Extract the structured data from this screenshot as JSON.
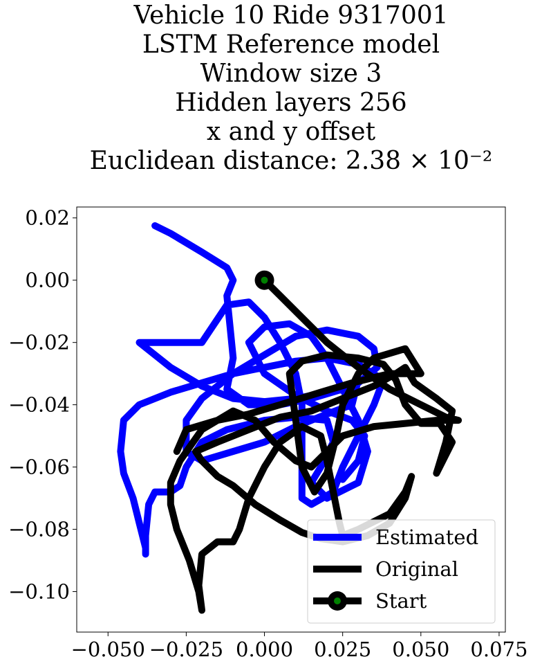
{
  "chart_data": {
    "type": "line",
    "title_lines": [
      "Vehicle 10 Ride 9317001",
      "LSTM Reference model",
      "Window size 3",
      "Hidden layers 256",
      "x and y offset",
      "Euclidean distance: 2.38 × 10⁻²"
    ],
    "xlabel": "",
    "ylabel": "",
    "xlim": [
      -0.06,
      0.077
    ],
    "ylim": [
      -0.113,
      0.0235
    ],
    "x_ticks": [
      -0.05,
      -0.025,
      0.0,
      0.025,
      0.05,
      0.075
    ],
    "x_tick_labels": [
      "−0.050",
      "−0.025",
      "0.000",
      "0.025",
      "0.050",
      "0.075"
    ],
    "y_ticks": [
      0.02,
      0.0,
      -0.02,
      -0.04,
      -0.06,
      -0.08,
      -0.1
    ],
    "y_tick_labels": [
      "0.02",
      "0.00",
      "−0.02",
      "−0.04",
      "−0.06",
      "−0.08",
      "−0.10"
    ],
    "grid": false,
    "legend_position": "bottom-right",
    "series": [
      {
        "name": "Estimated",
        "color": "#0000ff",
        "points": [
          [
            -0.035,
            0.0175
          ],
          [
            -0.03,
            0.015
          ],
          [
            -0.02,
            0.009
          ],
          [
            -0.012,
            0.004
          ],
          [
            -0.01,
            0.0
          ],
          [
            -0.012,
            -0.005
          ],
          [
            -0.011,
            -0.015
          ],
          [
            -0.01,
            -0.025
          ],
          [
            -0.012,
            -0.035
          ],
          [
            -0.005,
            -0.04
          ],
          [
            0.005,
            -0.04
          ],
          [
            0.015,
            -0.038
          ],
          [
            0.025,
            -0.035
          ],
          [
            0.03,
            -0.032
          ],
          [
            0.028,
            -0.04
          ],
          [
            0.02,
            -0.043
          ],
          [
            0.01,
            -0.047
          ],
          [
            0.0,
            -0.052
          ],
          [
            -0.01,
            -0.055
          ],
          [
            -0.02,
            -0.058
          ],
          [
            -0.025,
            -0.055
          ],
          [
            -0.025,
            -0.045
          ],
          [
            -0.02,
            -0.038
          ],
          [
            -0.01,
            -0.03
          ],
          [
            0.0,
            -0.024
          ],
          [
            0.01,
            -0.018
          ],
          [
            0.02,
            -0.016
          ],
          [
            0.03,
            -0.018
          ],
          [
            0.035,
            -0.022
          ],
          [
            0.036,
            -0.028
          ],
          [
            0.03,
            -0.033
          ],
          [
            0.02,
            -0.036
          ],
          [
            0.01,
            -0.038
          ],
          [
            0.0,
            -0.039
          ],
          [
            -0.01,
            -0.038
          ],
          [
            -0.02,
            -0.034
          ],
          [
            -0.03,
            -0.028
          ],
          [
            -0.04,
            -0.02
          ],
          [
            -0.02,
            -0.02
          ],
          [
            -0.012,
            -0.008
          ],
          [
            -0.005,
            -0.007
          ],
          [
            0.0,
            -0.012
          ],
          [
            0.005,
            -0.02
          ],
          [
            0.01,
            -0.03
          ],
          [
            0.012,
            -0.04
          ],
          [
            0.012,
            -0.05
          ],
          [
            0.012,
            -0.06
          ],
          [
            0.012,
            -0.07
          ],
          [
            0.015,
            -0.072
          ],
          [
            0.022,
            -0.068
          ],
          [
            0.025,
            -0.06
          ],
          [
            0.03,
            -0.05
          ],
          [
            0.035,
            -0.04
          ],
          [
            0.038,
            -0.032
          ],
          [
            0.03,
            -0.027
          ],
          [
            0.02,
            -0.025
          ],
          [
            0.01,
            -0.026
          ],
          [
            0.0,
            -0.028
          ],
          [
            -0.01,
            -0.03
          ],
          [
            -0.02,
            -0.033
          ],
          [
            -0.03,
            -0.036
          ],
          [
            -0.04,
            -0.04
          ],
          [
            -0.045,
            -0.045
          ],
          [
            -0.046,
            -0.055
          ],
          [
            -0.045,
            -0.062
          ],
          [
            -0.042,
            -0.07
          ],
          [
            -0.04,
            -0.078
          ],
          [
            -0.038,
            -0.086
          ],
          [
            -0.038,
            -0.088
          ],
          [
            -0.038,
            -0.082
          ],
          [
            -0.037,
            -0.072
          ],
          [
            -0.035,
            -0.068
          ],
          [
            -0.03,
            -0.068
          ],
          [
            -0.027,
            -0.066
          ],
          [
            -0.025,
            -0.06
          ],
          [
            -0.02,
            -0.052
          ],
          [
            -0.012,
            -0.048
          ],
          [
            0.0,
            -0.045
          ],
          [
            0.01,
            -0.044
          ],
          [
            0.02,
            -0.045
          ],
          [
            0.022,
            -0.052
          ],
          [
            0.018,
            -0.06
          ],
          [
            0.015,
            -0.065
          ],
          [
            0.02,
            -0.07
          ],
          [
            0.03,
            -0.065
          ],
          [
            0.033,
            -0.055
          ],
          [
            0.03,
            -0.045
          ],
          [
            0.025,
            -0.035
          ],
          [
            0.02,
            -0.025
          ],
          [
            0.015,
            -0.018
          ],
          [
            0.008,
            -0.014
          ],
          [
            0.0,
            -0.015
          ],
          [
            -0.005,
            -0.02
          ],
          [
            0.0,
            -0.03
          ],
          [
            0.01,
            -0.037
          ],
          [
            0.02,
            -0.042
          ],
          [
            0.028,
            -0.045
          ],
          [
            0.032,
            -0.05
          ],
          [
            0.03,
            -0.058
          ],
          [
            0.025,
            -0.064
          ]
        ]
      },
      {
        "name": "Original",
        "color": "#000000",
        "points": [
          [
            0.0,
            0.0
          ],
          [
            0.005,
            -0.005
          ],
          [
            0.012,
            -0.012
          ],
          [
            0.02,
            -0.02
          ],
          [
            0.03,
            -0.028
          ],
          [
            0.04,
            -0.035
          ],
          [
            0.05,
            -0.04
          ],
          [
            0.058,
            -0.044
          ],
          [
            0.062,
            -0.045
          ],
          [
            0.055,
            -0.045
          ],
          [
            0.045,
            -0.046
          ],
          [
            0.035,
            -0.047
          ],
          [
            0.025,
            -0.05
          ],
          [
            0.02,
            -0.055
          ],
          [
            0.015,
            -0.06
          ],
          [
            0.01,
            -0.058
          ],
          [
            0.003,
            -0.052
          ],
          [
            -0.003,
            -0.045
          ],
          [
            -0.01,
            -0.042
          ],
          [
            -0.02,
            -0.048
          ],
          [
            -0.027,
            -0.058
          ],
          [
            -0.03,
            -0.065
          ],
          [
            -0.03,
            -0.072
          ],
          [
            -0.028,
            -0.08
          ],
          [
            -0.024,
            -0.09
          ],
          [
            -0.021,
            -0.1
          ],
          [
            -0.02,
            -0.106
          ],
          [
            -0.021,
            -0.098
          ],
          [
            -0.02,
            -0.088
          ],
          [
            -0.015,
            -0.084
          ],
          [
            -0.01,
            -0.084
          ],
          [
            -0.008,
            -0.08
          ],
          [
            -0.005,
            -0.07
          ],
          [
            0.0,
            -0.06
          ],
          [
            0.005,
            -0.052
          ],
          [
            0.012,
            -0.047
          ],
          [
            0.018,
            -0.05
          ],
          [
            0.02,
            -0.058
          ],
          [
            0.022,
            -0.068
          ],
          [
            0.024,
            -0.078
          ],
          [
            0.025,
            -0.082
          ],
          [
            0.03,
            -0.08
          ],
          [
            0.04,
            -0.075
          ],
          [
            0.045,
            -0.068
          ],
          [
            0.047,
            -0.063
          ],
          [
            0.045,
            -0.07
          ],
          [
            0.04,
            -0.078
          ],
          [
            0.033,
            -0.082
          ],
          [
            0.025,
            -0.084
          ],
          [
            0.018,
            -0.083
          ],
          [
            0.012,
            -0.081
          ],
          [
            0.005,
            -0.077
          ],
          [
            -0.003,
            -0.072
          ],
          [
            -0.01,
            -0.066
          ],
          [
            -0.015,
            -0.063
          ],
          [
            -0.02,
            -0.058
          ],
          [
            -0.022,
            -0.055
          ],
          [
            -0.015,
            -0.052
          ],
          [
            -0.005,
            -0.048
          ],
          [
            0.005,
            -0.044
          ],
          [
            0.015,
            -0.042
          ],
          [
            0.025,
            -0.038
          ],
          [
            0.035,
            -0.034
          ],
          [
            0.042,
            -0.03
          ],
          [
            0.045,
            -0.028
          ],
          [
            0.048,
            -0.033
          ],
          [
            0.055,
            -0.038
          ],
          [
            0.06,
            -0.042
          ],
          [
            0.058,
            -0.052
          ],
          [
            0.055,
            -0.062
          ],
          [
            0.057,
            -0.058
          ],
          [
            0.06,
            -0.052
          ],
          [
            0.056,
            -0.046
          ],
          [
            0.05,
            -0.046
          ],
          [
            0.045,
            -0.04
          ],
          [
            0.042,
            -0.032
          ],
          [
            0.038,
            -0.027
          ],
          [
            0.03,
            -0.025
          ],
          [
            0.02,
            -0.024
          ],
          [
            0.012,
            -0.026
          ],
          [
            0.008,
            -0.03
          ],
          [
            0.01,
            -0.045
          ],
          [
            0.012,
            -0.06
          ],
          [
            0.016,
            -0.068
          ],
          [
            0.02,
            -0.062
          ],
          [
            0.023,
            -0.05
          ],
          [
            0.025,
            -0.04
          ],
          [
            0.03,
            -0.03
          ],
          [
            0.035,
            -0.025
          ],
          [
            0.045,
            -0.022
          ],
          [
            0.05,
            -0.03
          ],
          [
            0.04,
            -0.03
          ],
          [
            0.028,
            -0.033
          ],
          [
            0.018,
            -0.036
          ],
          [
            0.005,
            -0.04
          ],
          [
            -0.005,
            -0.043
          ],
          [
            -0.015,
            -0.045
          ],
          [
            -0.025,
            -0.048
          ],
          [
            -0.028,
            -0.055
          ]
        ]
      }
    ],
    "start_point": {
      "name": "Start",
      "x": 0.0,
      "y": 0.0,
      "color": "#000000",
      "inner_color": "#008000"
    }
  }
}
